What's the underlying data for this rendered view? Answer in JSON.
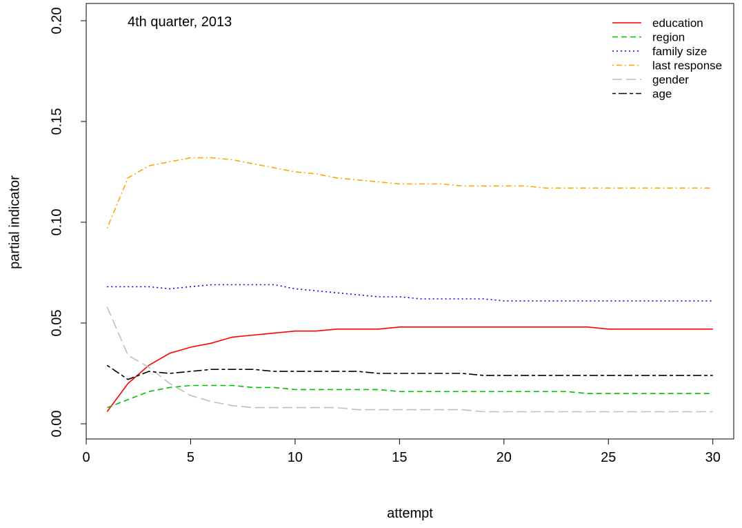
{
  "chart_data": {
    "type": "line",
    "title": "",
    "annotation": "4th quarter, 2013",
    "xlabel": "attempt",
    "ylabel": "partial indicator",
    "xlim": [
      0,
      31
    ],
    "ylim": [
      0,
      0.2
    ],
    "x_ticks": [
      0,
      5,
      10,
      15,
      20,
      25,
      30
    ],
    "x_tick_labels": [
      "0",
      "5",
      "10",
      "15",
      "20",
      "25",
      "30"
    ],
    "y_ticks": [
      0,
      0.05,
      0.1,
      0.15,
      0.2
    ],
    "y_tick_labels": [
      "0.00",
      "0.05",
      "0.10",
      "0.15",
      "0.20"
    ],
    "grid": false,
    "legend_position": "top-right",
    "x": [
      1,
      2,
      3,
      4,
      5,
      6,
      7,
      8,
      9,
      10,
      11,
      12,
      13,
      14,
      15,
      16,
      17,
      18,
      19,
      20,
      21,
      22,
      23,
      24,
      25,
      26,
      27,
      28,
      29,
      30
    ],
    "series": [
      {
        "name": "education",
        "color": "#ff0000",
        "dash": "solid",
        "values": [
          0.006,
          0.02,
          0.029,
          0.035,
          0.038,
          0.04,
          0.043,
          0.044,
          0.045,
          0.046,
          0.046,
          0.047,
          0.047,
          0.047,
          0.048,
          0.048,
          0.048,
          0.048,
          0.048,
          0.048,
          0.048,
          0.048,
          0.048,
          0.048,
          0.047,
          0.047,
          0.047,
          0.047,
          0.047,
          0.047
        ]
      },
      {
        "name": "region",
        "color": "#00c000",
        "dash": "dashed",
        "values": [
          0.008,
          0.012,
          0.016,
          0.018,
          0.019,
          0.019,
          0.019,
          0.018,
          0.018,
          0.017,
          0.017,
          0.017,
          0.017,
          0.017,
          0.016,
          0.016,
          0.016,
          0.016,
          0.016,
          0.016,
          0.016,
          0.016,
          0.016,
          0.015,
          0.015,
          0.015,
          0.015,
          0.015,
          0.015,
          0.015
        ]
      },
      {
        "name": "family size",
        "color": "#0000ff",
        "dash": "dotted",
        "values": [
          0.068,
          0.068,
          0.068,
          0.067,
          0.068,
          0.069,
          0.069,
          0.069,
          0.069,
          0.067,
          0.066,
          0.065,
          0.064,
          0.063,
          0.063,
          0.062,
          0.062,
          0.062,
          0.062,
          0.061,
          0.061,
          0.061,
          0.061,
          0.061,
          0.061,
          0.061,
          0.061,
          0.061,
          0.061,
          0.061
        ]
      },
      {
        "name": "last response",
        "color": "#ffa500",
        "dash": "dotdash",
        "values": [
          0.097,
          0.122,
          0.128,
          0.13,
          0.132,
          0.132,
          0.131,
          0.129,
          0.127,
          0.125,
          0.124,
          0.122,
          0.121,
          0.12,
          0.119,
          0.119,
          0.119,
          0.118,
          0.118,
          0.118,
          0.118,
          0.117,
          0.117,
          0.117,
          0.117,
          0.117,
          0.117,
          0.117,
          0.117,
          0.117
        ]
      },
      {
        "name": "gender",
        "color": "#bebebe",
        "dash": "longdash",
        "values": [
          0.058,
          0.034,
          0.028,
          0.02,
          0.014,
          0.011,
          0.009,
          0.008,
          0.008,
          0.008,
          0.008,
          0.008,
          0.007,
          0.007,
          0.007,
          0.007,
          0.007,
          0.007,
          0.006,
          0.006,
          0.006,
          0.006,
          0.006,
          0.006,
          0.006,
          0.006,
          0.006,
          0.006,
          0.006,
          0.006
        ]
      },
      {
        "name": "age",
        "color": "#000000",
        "dash": "twodash",
        "values": [
          0.029,
          0.022,
          0.026,
          0.025,
          0.026,
          0.027,
          0.027,
          0.027,
          0.026,
          0.026,
          0.026,
          0.026,
          0.026,
          0.025,
          0.025,
          0.025,
          0.025,
          0.025,
          0.024,
          0.024,
          0.024,
          0.024,
          0.024,
          0.024,
          0.024,
          0.024,
          0.024,
          0.024,
          0.024,
          0.024
        ]
      }
    ]
  }
}
